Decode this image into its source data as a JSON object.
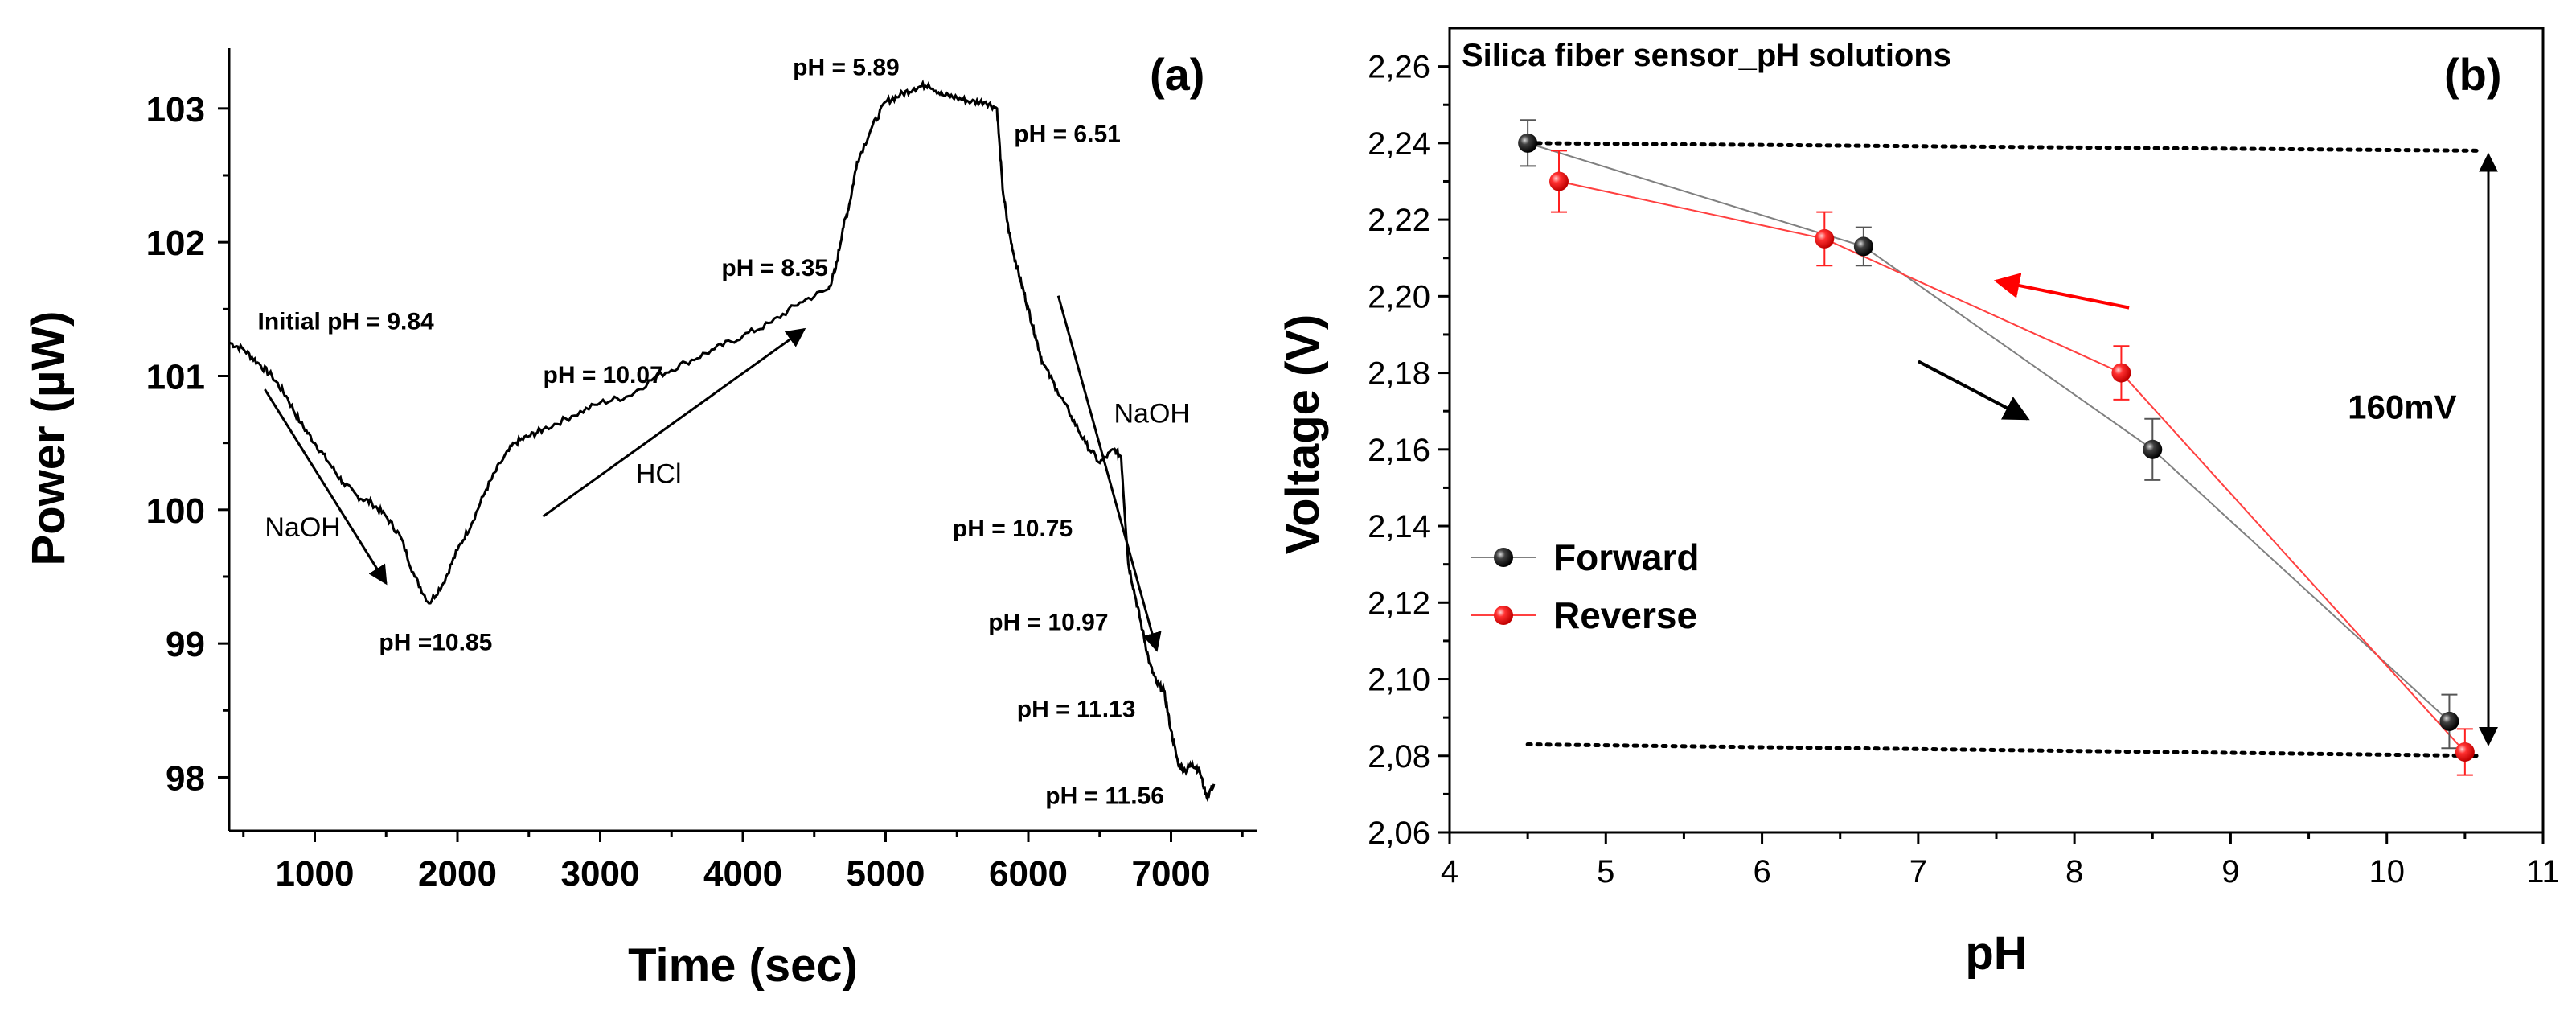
{
  "chart_data": [
    {
      "type": "line",
      "panel_label": "(a)",
      "xlabel": "Time (sec)",
      "ylabel": "Power (µW)",
      "xlim": [
        400,
        7600
      ],
      "ylim": [
        97.6,
        103.45
      ],
      "x_ticks": [
        "1000",
        "2000",
        "3000",
        "4000",
        "5000",
        "6000",
        "7000"
      ],
      "x_tick_values": [
        1000,
        2000,
        3000,
        4000,
        5000,
        6000,
        7000
      ],
      "y_ticks": [
        "98",
        "99",
        "100",
        "101",
        "102",
        "103"
      ],
      "y_tick_values": [
        98,
        99,
        100,
        101,
        102,
        103
      ],
      "series": [
        {
          "name": "Power",
          "color": "#000000",
          "x": [
            400,
            500,
            600,
            700,
            800,
            900,
            1000,
            1100,
            1200,
            1300,
            1400,
            1500,
            1600,
            1700,
            1800,
            1900,
            2000,
            2100,
            2200,
            2300,
            2400,
            2500,
            2600,
            2800,
            3000,
            3200,
            3400,
            3600,
            3800,
            4000,
            4200,
            4400,
            4600,
            4650,
            4700,
            4750,
            4800,
            4900,
            5000,
            5100,
            5200,
            5300,
            5400,
            5500,
            5600,
            5700,
            5780,
            5820,
            5860,
            5900,
            5950,
            6000,
            6050,
            6100,
            6200,
            6300,
            6400,
            6500,
            6600,
            6650,
            6700,
            6750,
            6800,
            6850,
            6900,
            6950,
            7000,
            7050,
            7100,
            7150,
            7200,
            7250,
            7300
          ],
          "y": [
            101.25,
            101.2,
            101.1,
            101.0,
            100.85,
            100.65,
            100.5,
            100.35,
            100.2,
            100.1,
            100.05,
            99.95,
            99.8,
            99.5,
            99.3,
            99.45,
            99.7,
            99.9,
            100.15,
            100.35,
            100.5,
            100.55,
            100.6,
            100.7,
            100.8,
            100.85,
            101.0,
            101.1,
            101.2,
            101.3,
            101.4,
            101.55,
            101.65,
            101.8,
            102.1,
            102.3,
            102.6,
            102.85,
            103.05,
            103.1,
            103.15,
            103.18,
            103.1,
            103.08,
            103.05,
            103.05,
            103.0,
            102.4,
            102.1,
            101.9,
            101.7,
            101.5,
            101.3,
            101.1,
            100.9,
            100.7,
            100.5,
            100.35,
            100.45,
            100.4,
            99.6,
            99.35,
            99.1,
            98.85,
            98.7,
            98.65,
            98.35,
            98.1,
            98.05,
            98.1,
            98.05,
            97.85,
            97.95
          ]
        }
      ],
      "annotations": [
        {
          "text": "Initial pH  = 9.84",
          "x": 600,
          "y": 101.35
        },
        {
          "text": "pH = 10.07",
          "x": 2600,
          "y": 100.95
        },
        {
          "text": "pH = 8.35",
          "x": 3850,
          "y": 101.75
        },
        {
          "text": "pH = 5.89",
          "x": 4350,
          "y": 103.25
        },
        {
          "text": "pH = 6.51",
          "x": 5900,
          "y": 102.75
        },
        {
          "text": "NaOH",
          "x": 650,
          "y": 99.8
        },
        {
          "text": "HCl",
          "x": 3250,
          "y": 100.2
        },
        {
          "text": "NaOH",
          "x": 6600,
          "y": 100.65
        },
        {
          "text": "pH =10.85",
          "x": 1450,
          "y": 98.95
        },
        {
          "text": "pH = 10.75",
          "x": 5470,
          "y": 99.8
        },
        {
          "text": "pH = 10.97",
          "x": 5720,
          "y": 99.1
        },
        {
          "text": "pH = 11.13",
          "x": 5920,
          "y": 98.45
        },
        {
          "text": "pH = 11.56",
          "x": 6120,
          "y": 97.8
        }
      ],
      "arrows": [
        {
          "from": [
            650,
            100.9
          ],
          "to": [
            1500,
            99.45
          ]
        },
        {
          "from": [
            2600,
            99.95
          ],
          "to": [
            4430,
            101.35
          ]
        },
        {
          "from": [
            6210,
            101.6
          ],
          "to": [
            6900,
            98.95
          ]
        }
      ]
    },
    {
      "type": "scatter",
      "panel_label": "(b)",
      "title": "Silica fiber sensor_pH solutions",
      "xlabel": "pH",
      "ylabel": "Voltage (V)",
      "xlim": [
        4,
        11
      ],
      "ylim": [
        2.06,
        2.27
      ],
      "x_ticks": [
        "4",
        "5",
        "6",
        "7",
        "8",
        "9",
        "10",
        "11"
      ],
      "x_tick_values": [
        4,
        5,
        6,
        7,
        8,
        9,
        10,
        11
      ],
      "y_ticks": [
        "2,06",
        "2,08",
        "2,10",
        "2,12",
        "2,14",
        "2,16",
        "2,18",
        "2,20",
        "2,22",
        "2,24",
        "2,26"
      ],
      "y_tick_values": [
        2.06,
        2.08,
        2.1,
        2.12,
        2.14,
        2.16,
        2.18,
        2.2,
        2.22,
        2.24,
        2.26
      ],
      "legend_position": "middle-left",
      "series": [
        {
          "name": "Forward",
          "color": "#000000",
          "line_color": "#808080",
          "x": [
            4.5,
            6.65,
            8.5,
            10.4
          ],
          "y": [
            2.24,
            2.213,
            2.16,
            2.089
          ],
          "err": [
            0.006,
            0.005,
            0.008,
            0.007
          ]
        },
        {
          "name": "Reverse",
          "color": "#ff2020",
          "line_color": "#ff4040",
          "x": [
            4.7,
            6.4,
            8.3,
            10.5
          ],
          "y": [
            2.23,
            2.215,
            2.18,
            2.081
          ],
          "err": [
            0.008,
            0.007,
            0.007,
            0.006
          ]
        }
      ],
      "reference_lines": [
        {
          "x": [
            4.5,
            10.6
          ],
          "y": [
            2.24,
            2.238
          ]
        },
        {
          "x": [
            4.5,
            10.6
          ],
          "y": [
            2.083,
            2.08
          ]
        }
      ],
      "annotations": [
        {
          "text": "160mV",
          "x": 9.75,
          "y": 2.168
        }
      ],
      "arrows": [
        {
          "from": [
            8.35,
            2.197
          ],
          "to": [
            7.5,
            2.204
          ],
          "color": "#ff0000"
        },
        {
          "from": [
            7.0,
            2.183
          ],
          "to": [
            7.7,
            2.168
          ],
          "color": "#000000"
        }
      ],
      "double_arrow": {
        "x": 10.65,
        "y": [
          2.237,
          2.083
        ]
      }
    }
  ]
}
